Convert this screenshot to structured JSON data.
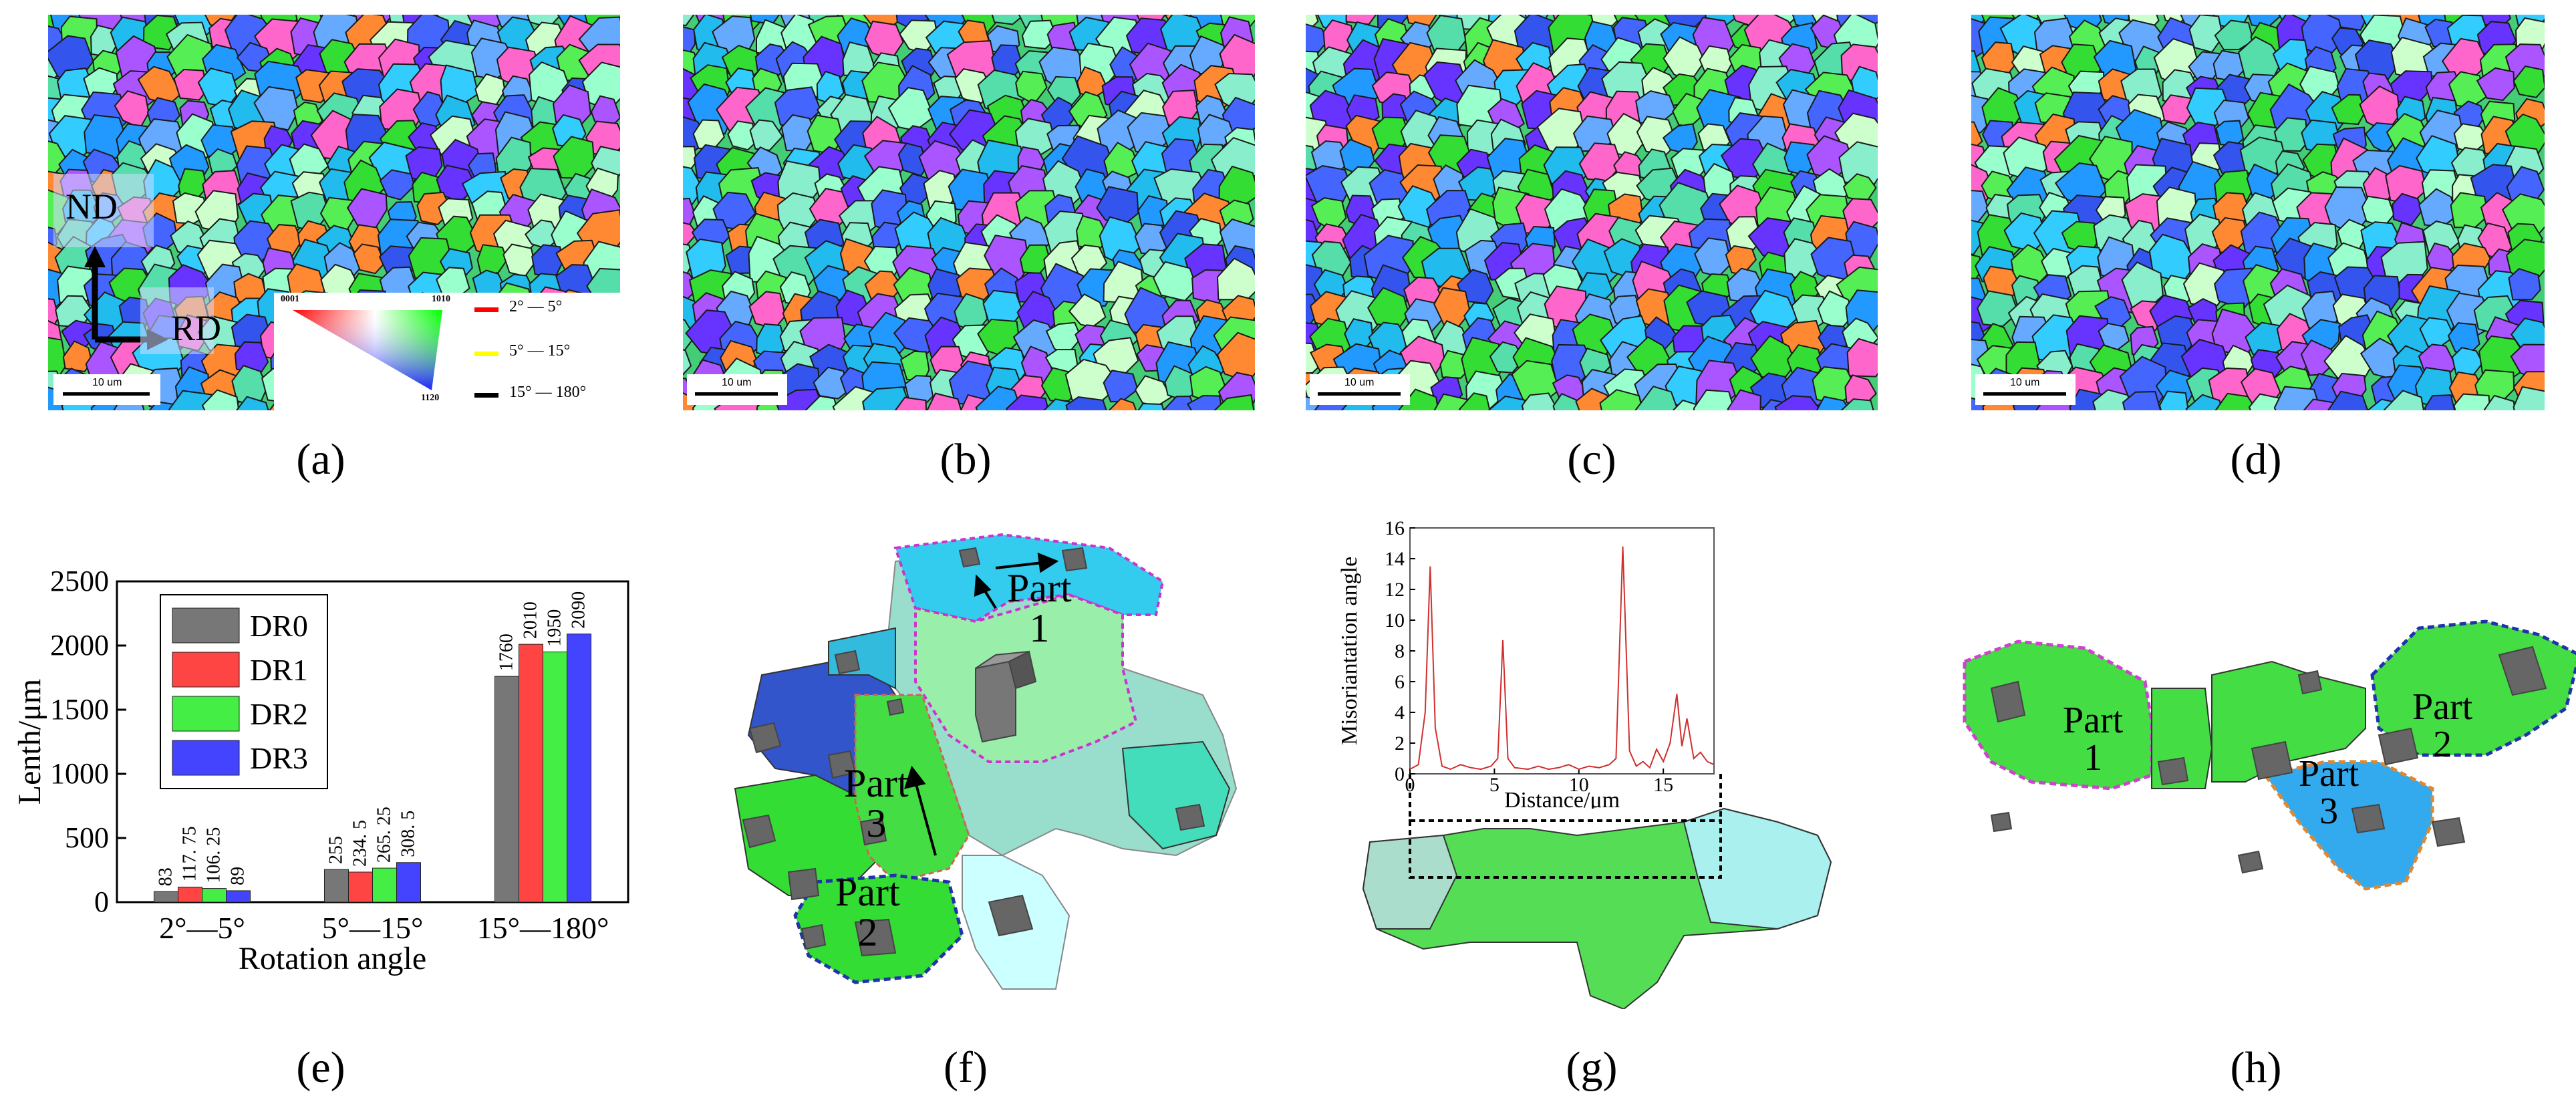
{
  "captions": [
    "(a)",
    "(b)",
    "(c)",
    "(d)",
    "(e)",
    "(f)",
    "(g)",
    "(h)"
  ],
  "scale_bar": "10 um",
  "axes_labels": {
    "nd": "ND",
    "rd": "RD"
  },
  "ipf_legend": {
    "c1": "0001",
    "c2": "1010",
    "c3": "1120"
  },
  "boundary_legend": [
    {
      "label": "2° — 5°",
      "color": "#ff0000"
    },
    {
      "label": "5° — 15°",
      "color": "#ffff00"
    },
    {
      "label": "15° — 180°",
      "color": "#000000"
    }
  ],
  "chart_data": [
    {
      "type": "bar",
      "ylabel": "Lenth/μm",
      "xlabel": "Rotation angle",
      "categories": [
        "2°—5°",
        "5°—15°",
        "15°—180°"
      ],
      "ylim": [
        0,
        2500
      ],
      "yticks": [
        0,
        500,
        1000,
        1500,
        2000,
        2500
      ],
      "legend_position": "top-left",
      "series": [
        {
          "name": "DR0",
          "color": "#777777",
          "values": [
            83,
            255,
            1760
          ],
          "labels": [
            "83",
            "255",
            "1760"
          ]
        },
        {
          "name": "DR1",
          "color": "#ff4444",
          "values": [
            117.75,
            234.5,
            2010
          ],
          "labels": [
            "117. 75",
            "234. 5",
            "2010"
          ]
        },
        {
          "name": "DR2",
          "color": "#44ee44",
          "values": [
            106.25,
            265.25,
            1950
          ],
          "labels": [
            "106. 25",
            "265. 25",
            "1950"
          ]
        },
        {
          "name": "DR3",
          "color": "#4444ff",
          "values": [
            89,
            308.5,
            2090
          ],
          "labels": [
            "89",
            "308. 5",
            "2090"
          ]
        }
      ]
    },
    {
      "type": "line",
      "ylabel": "Misoriantation angle",
      "xlabel": "Distance/μm",
      "xlim": [
        0,
        18
      ],
      "ylim": [
        0,
        16
      ],
      "xticks": [
        0,
        5,
        10,
        15
      ],
      "yticks": [
        0,
        2,
        4,
        6,
        8,
        10,
        12,
        14,
        16
      ],
      "series": [
        {
          "color": "#d03030",
          "x": [
            0,
            0.5,
            0.9,
            1.2,
            1.5,
            1.9,
            2.4,
            3,
            3.6,
            4.2,
            4.8,
            5.2,
            5.5,
            5.8,
            6.2,
            7,
            7.6,
            8.2,
            8.8,
            9.4,
            10,
            10.6,
            11.2,
            11.8,
            12.2,
            12.6,
            13,
            13.4,
            13.8,
            14.2,
            14.6,
            15,
            15.4,
            15.8,
            16.1,
            16.4,
            16.8,
            17.2,
            17.6,
            18
          ],
          "y": [
            0.3,
            0.6,
            4,
            13.5,
            3,
            0.5,
            0.3,
            0.6,
            0.4,
            0.3,
            0.5,
            1,
            8.7,
            1,
            0.4,
            0.3,
            0.5,
            0.3,
            0.4,
            0.6,
            0.3,
            0.5,
            0.4,
            0.6,
            1,
            14.8,
            1.5,
            0.5,
            0.8,
            0.4,
            1.6,
            0.8,
            2,
            5.2,
            1.8,
            3.6,
            1,
            1.4,
            0.8,
            0.6
          ]
        }
      ]
    }
  ],
  "part_labels_f": [
    {
      "text": "Part",
      "num": "1"
    },
    {
      "text": "Part",
      "num": "3"
    },
    {
      "text": "Part",
      "num": "2"
    }
  ],
  "part_labels_h": [
    {
      "text": "Part",
      "num": "1"
    },
    {
      "text": "Part",
      "num": "3"
    },
    {
      "text": "Part",
      "num": "2"
    }
  ]
}
